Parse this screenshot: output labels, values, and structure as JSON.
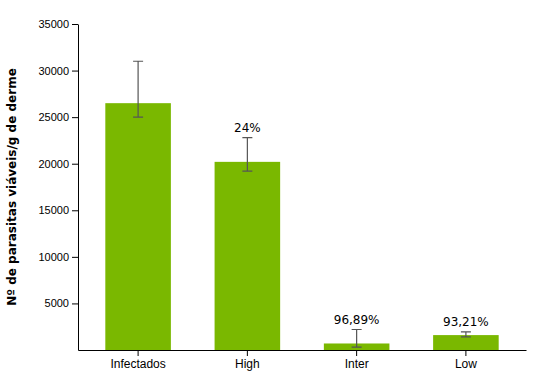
{
  "chart_data": {
    "type": "bar",
    "ylabel": "Nº de parasitas viáveis/g de derme",
    "categories": [
      "Infectados",
      "High",
      "Inter",
      "Low"
    ],
    "values": [
      26500,
      20200,
      700,
      1600
    ],
    "errors_plus": [
      4500,
      2600,
      1500,
      350
    ],
    "errors_minus": [
      1500,
      1000,
      400,
      200
    ],
    "annotations": [
      null,
      "24%",
      "96,89%",
      "93,21%"
    ],
    "color": "#7ab800",
    "ylim": [
      0,
      35000
    ],
    "yticks": [
      5000,
      10000,
      15000,
      20000,
      25000,
      30000,
      35000
    ],
    "grid": false
  }
}
